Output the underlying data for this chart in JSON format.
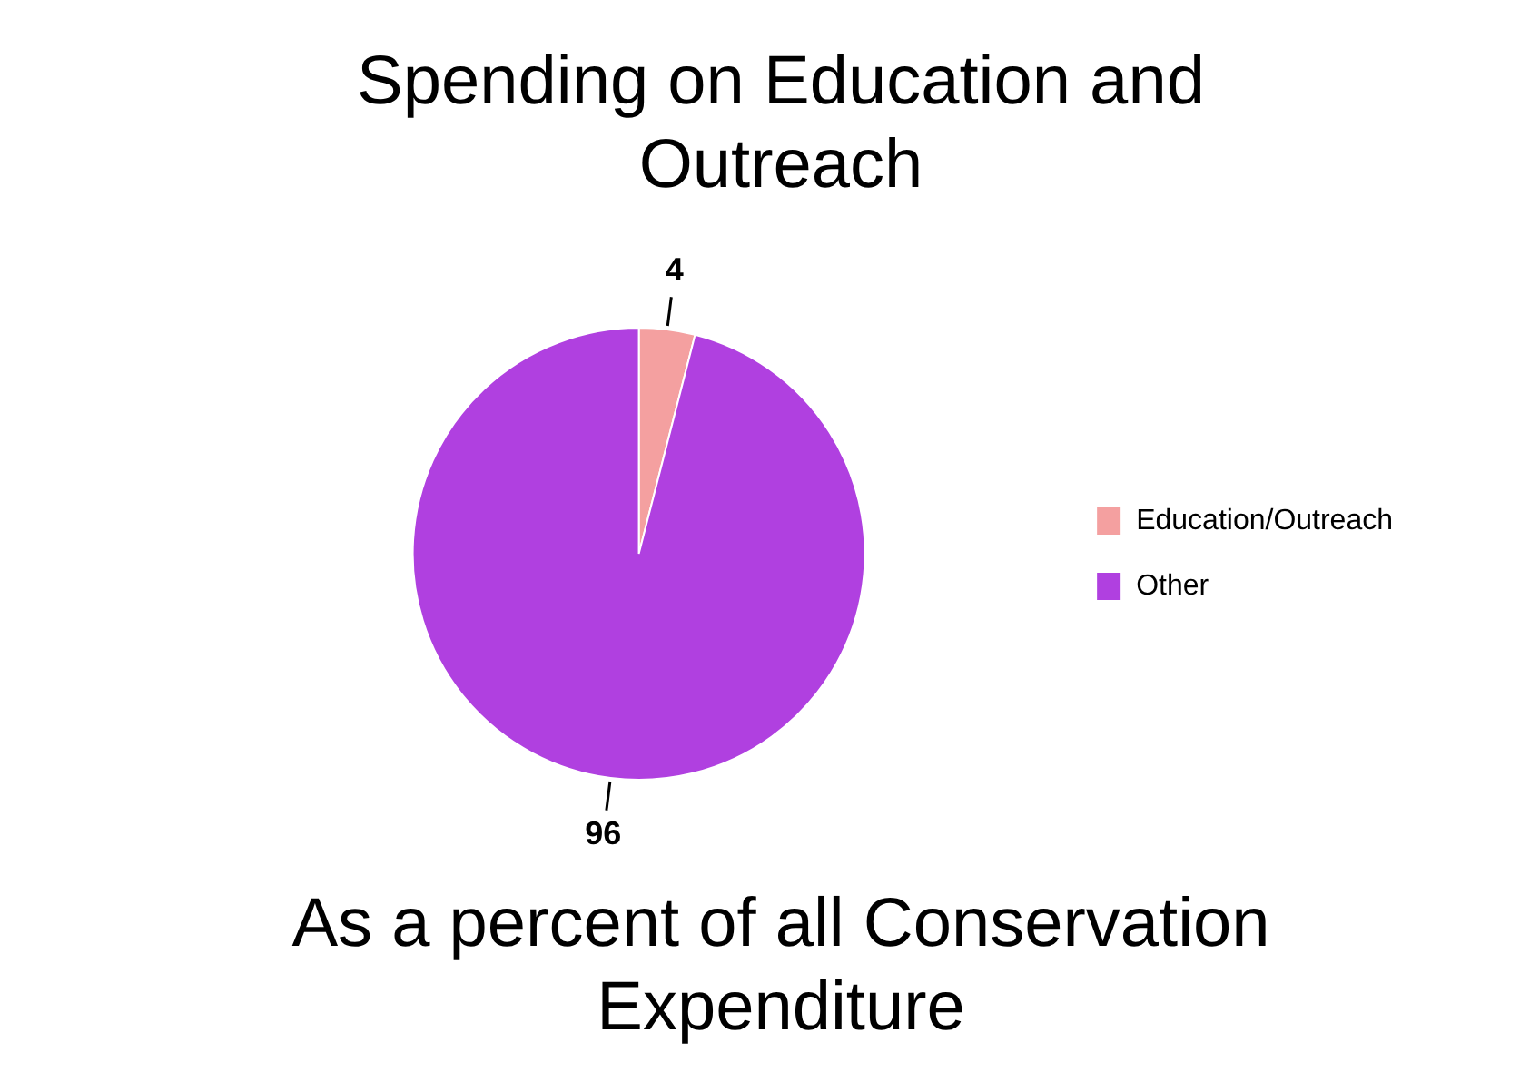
{
  "chart_data": {
    "type": "pie",
    "title": "Spending on Education and Outreach",
    "categories": [
      "Education/Outreach",
      "Other"
    ],
    "values": [
      4,
      96
    ],
    "colors": [
      "#f4a0a0",
      "#b040e0"
    ],
    "data_labels": true,
    "legend": "right",
    "annotations": [
      "As a percent of all Conservation Expenditure"
    ]
  }
}
